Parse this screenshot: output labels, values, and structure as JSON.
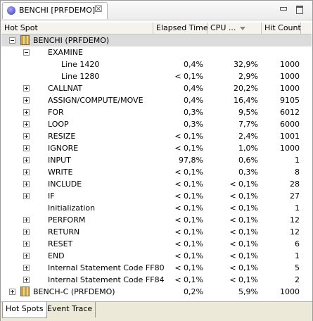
{
  "view": {
    "tab_title": "BENCHI [PRFDEMO]",
    "tab_icon": "eclipse-view-icon",
    "close_glyph": "☒"
  },
  "columns": {
    "hot_spot": "Hot Spot",
    "elapsed": "Elapsed Time",
    "cpu": "CPU ...",
    "hits": "Hit Count"
  },
  "rows": [
    {
      "name": "BENCHI (PRFDEMO)",
      "elapsed": "",
      "cpu": "",
      "hits": ""
    },
    {
      "name": "EXAMINE",
      "elapsed": "",
      "cpu": "",
      "hits": ""
    },
    {
      "name": "Line 1420",
      "elapsed": "0,4%",
      "cpu": "32,9%",
      "hits": "1000"
    },
    {
      "name": "Line 1280",
      "elapsed": "< 0,1%",
      "cpu": "2,9%",
      "hits": "1000"
    },
    {
      "name": "CALLNAT",
      "elapsed": "0,4%",
      "cpu": "20,2%",
      "hits": "1000"
    },
    {
      "name": "ASSIGN/COMPUTE/MOVE",
      "elapsed": "0,4%",
      "cpu": "16,4%",
      "hits": "9105"
    },
    {
      "name": "FOR",
      "elapsed": "0,3%",
      "cpu": "9,5%",
      "hits": "6012"
    },
    {
      "name": "LOOP",
      "elapsed": "0,3%",
      "cpu": "7,7%",
      "hits": "6000"
    },
    {
      "name": "RESIZE",
      "elapsed": "< 0,1%",
      "cpu": "2,4%",
      "hits": "1001"
    },
    {
      "name": "IGNORE",
      "elapsed": "< 0,1%",
      "cpu": "1,0%",
      "hits": "1000"
    },
    {
      "name": "INPUT",
      "elapsed": "97,8%",
      "cpu": "0,6%",
      "hits": "1"
    },
    {
      "name": "WRITE",
      "elapsed": "< 0,1%",
      "cpu": "0,3%",
      "hits": "8"
    },
    {
      "name": "INCLUDE",
      "elapsed": "< 0,1%",
      "cpu": "< 0,1%",
      "hits": "28"
    },
    {
      "name": "IF",
      "elapsed": "< 0,1%",
      "cpu": "< 0,1%",
      "hits": "27"
    },
    {
      "name": "Initialization",
      "elapsed": "< 0,1%",
      "cpu": "< 0,1%",
      "hits": "1"
    },
    {
      "name": "PERFORM",
      "elapsed": "< 0,1%",
      "cpu": "< 0,1%",
      "hits": "12"
    },
    {
      "name": "RETURN",
      "elapsed": "< 0,1%",
      "cpu": "< 0,1%",
      "hits": "12"
    },
    {
      "name": "RESET",
      "elapsed": "< 0,1%",
      "cpu": "< 0,1%",
      "hits": "6"
    },
    {
      "name": "END",
      "elapsed": "< 0,1%",
      "cpu": "< 0,1%",
      "hits": "1"
    },
    {
      "name": "Internal Statement Code FF80",
      "elapsed": "< 0,1%",
      "cpu": "< 0,1%",
      "hits": "5"
    },
    {
      "name": "Internal Statement Code FF84",
      "elapsed": "< 0,1%",
      "cpu": "< 0,1%",
      "hits": "2"
    },
    {
      "name": "BENCH-C (PRFDEMO)",
      "elapsed": "0,2%",
      "cpu": "5,9%",
      "hits": "1000"
    }
  ],
  "bottom_tabs": {
    "hot_spots": "Hot Spots",
    "event_trace": "Event Trace"
  }
}
